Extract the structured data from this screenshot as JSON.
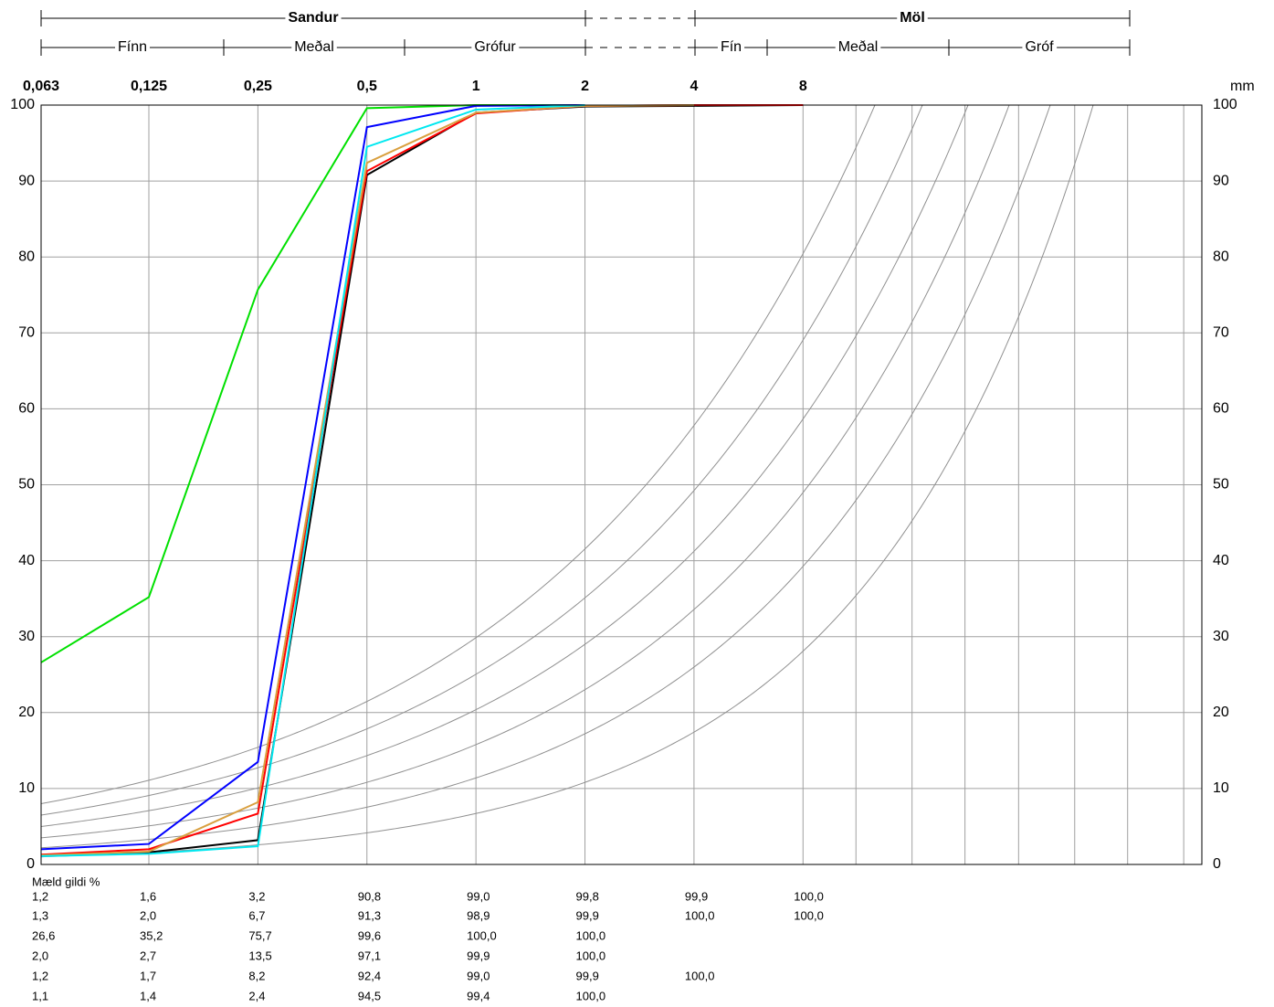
{
  "chart_data": {
    "type": "line",
    "annotations": {
      "groups": [
        "Sandur",
        "Möl"
      ],
      "classes": [
        "Fínn",
        "Meðal",
        "Grófur",
        "Fín",
        "Meðal",
        "Gróf"
      ]
    },
    "x_unit": "mm",
    "table_title": "Mæld gildi %",
    "x": [
      0.063,
      0.125,
      0.25,
      0.5,
      1,
      2,
      4,
      8
    ],
    "xlim": [
      0.063,
      101
    ],
    "log_x": true,
    "xticks": [
      {
        "value": 0.063,
        "label": "0,063"
      },
      {
        "value": 0.125,
        "label": "0,125"
      },
      {
        "value": 0.25,
        "label": "0,25"
      },
      {
        "value": 0.5,
        "label": "0,5"
      },
      1,
      2,
      4,
      8
    ],
    "xgrid": [
      11.2,
      16,
      22.4,
      31.5,
      45,
      63,
      90
    ],
    "ylim": [
      0,
      100
    ],
    "yticks": [
      0,
      10,
      20,
      30,
      40,
      50,
      60,
      70,
      80,
      90,
      100
    ],
    "y2lim": [
      100,
      0
    ],
    "y2ticks": [
      0,
      10,
      20,
      30,
      40,
      50,
      60,
      70,
      80,
      90,
      100
    ],
    "grid": true,
    "series": [
      {
        "color": "#000000",
        "values": [
          1.2,
          1.6,
          3.2,
          90.8,
          99.0,
          99.8,
          99.9,
          100.0
        ],
        "value_labels": [
          "1,2",
          "1,6",
          "3,2",
          "90,8",
          "99,0",
          "99,8",
          "99,9",
          "100,0"
        ]
      },
      {
        "color": "#ff0000",
        "values": [
          1.3,
          2.0,
          6.7,
          91.3,
          98.9,
          99.9,
          100.0,
          100.0
        ],
        "value_labels": [
          "1,3",
          "2,0",
          "6,7",
          "91,3",
          "98,9",
          "99,9",
          "100,0",
          "100,0"
        ]
      },
      {
        "color": "#00e000",
        "values": [
          26.6,
          35.2,
          75.7,
          99.6,
          100.0,
          100.0,
          null,
          null
        ],
        "value_labels": [
          "26,6",
          "35,2",
          "75,7",
          "99,6",
          "100,0",
          "100,0",
          null,
          null
        ]
      },
      {
        "color": "#0000ff",
        "values": [
          2.0,
          2.7,
          13.5,
          97.1,
          99.9,
          100.0,
          null,
          null
        ],
        "value_labels": [
          "2,0",
          "2,7",
          "13,5",
          "97,1",
          "99,9",
          "100,0",
          null,
          null
        ]
      },
      {
        "color": "#d9a040",
        "values": [
          1.2,
          1.7,
          8.2,
          92.4,
          99.0,
          99.9,
          100.0,
          null
        ],
        "value_labels": [
          "1,2",
          "1,7",
          "8,2",
          "92,4",
          "99,0",
          "99,9",
          "100,0",
          null
        ]
      },
      {
        "color": "#00e8f0",
        "values": [
          1.1,
          1.4,
          2.4,
          94.5,
          99.4,
          100.0,
          null,
          null
        ],
        "value_labels": [
          "1,1",
          "1,4",
          "2,4",
          "94,5",
          "99,4",
          "100,0",
          null,
          null
        ]
      }
    ]
  }
}
